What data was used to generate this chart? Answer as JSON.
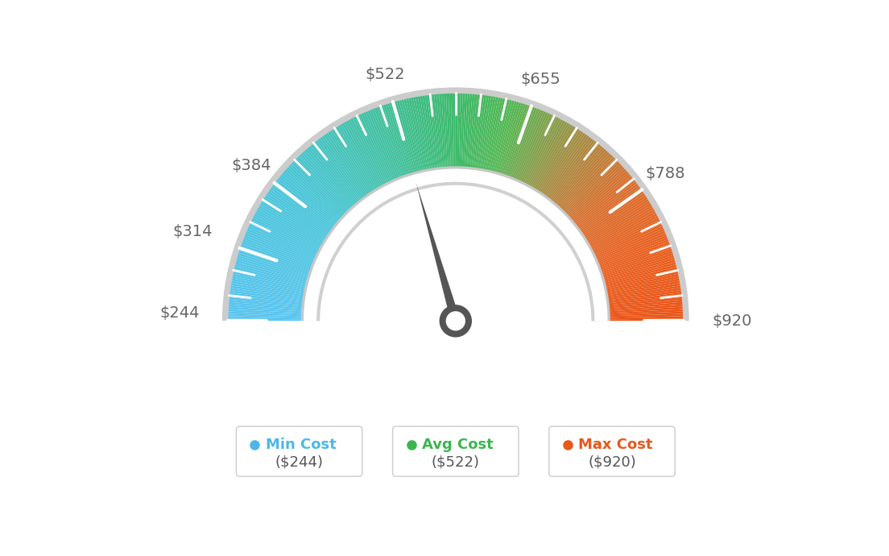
{
  "min_val": 244,
  "max_val": 920,
  "avg_val": 522,
  "labels": [
    "$244",
    "$314",
    "$384",
    "$522",
    "$655",
    "$788",
    "$920"
  ],
  "label_values": [
    244,
    314,
    384,
    522,
    655,
    788,
    920
  ],
  "min_cost_label": "Min Cost",
  "avg_cost_label": "Avg Cost",
  "max_cost_label": "Max Cost",
  "min_color": "#4db8e8",
  "avg_color": "#3cb550",
  "max_color": "#e8581a",
  "needle_value": 522,
  "background_color": "#ffffff",
  "label_color": "#666666",
  "gauge_colors": {
    "blue": [
      77,
      184,
      232
    ],
    "cyan_green": [
      60,
      181,
      160
    ],
    "green": [
      60,
      181,
      80
    ],
    "yellow_green": [
      120,
      170,
      60
    ],
    "orange": [
      220,
      120,
      40
    ],
    "red_orange": [
      232,
      88,
      26
    ]
  }
}
